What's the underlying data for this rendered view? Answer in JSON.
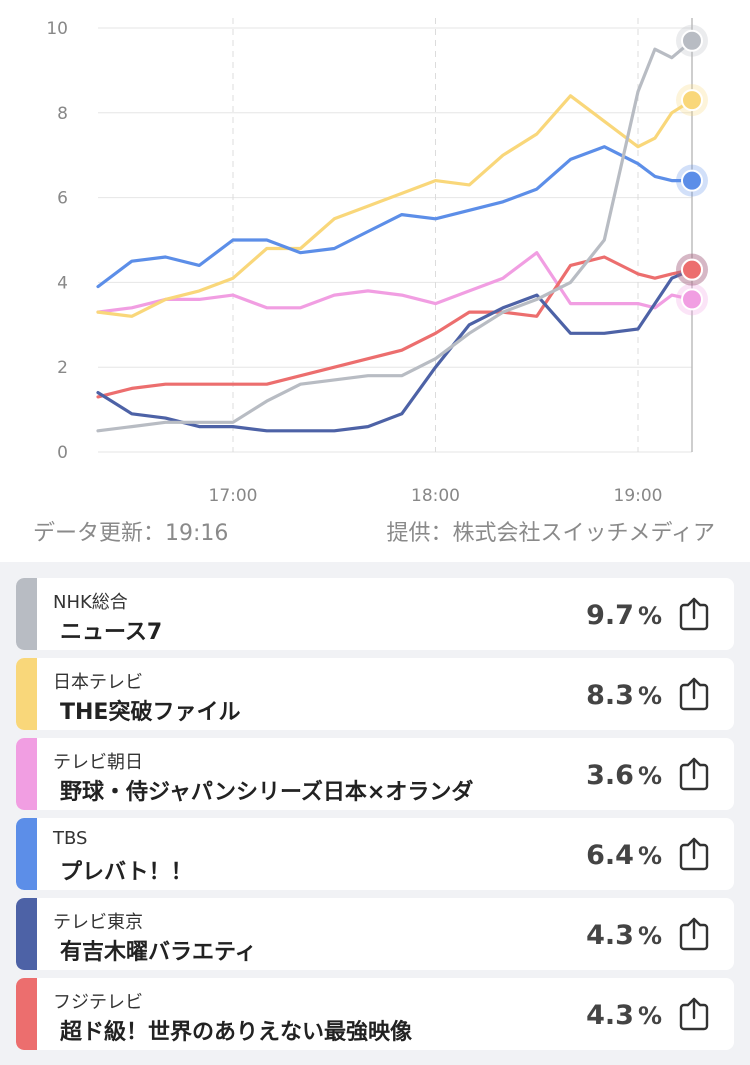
{
  "footer": {
    "update": "データ更新：19:16",
    "source": "提供：株式会社スイッチメディア"
  },
  "chart_data": {
    "type": "line",
    "xlabel": "",
    "ylabel": "",
    "x_ticks": [
      "17:00",
      "18:00",
      "19:00"
    ],
    "x_range": [
      "16:20",
      "19:16"
    ],
    "ylim": [
      0,
      10
    ],
    "y_ticks": [
      0,
      2,
      4,
      6,
      8,
      10
    ],
    "grid": true,
    "x": [
      "16:20",
      "16:30",
      "16:40",
      "16:50",
      "17:00",
      "17:10",
      "17:20",
      "17:30",
      "17:40",
      "17:50",
      "18:00",
      "18:10",
      "18:20",
      "18:30",
      "18:40",
      "18:50",
      "19:00",
      "19:05",
      "19:10",
      "19:16"
    ],
    "series": [
      {
        "name": "NHK総合",
        "color": "#b8bcc3",
        "values": [
          0.5,
          0.6,
          0.7,
          0.7,
          0.7,
          1.2,
          1.6,
          1.7,
          1.8,
          1.8,
          2.2,
          2.8,
          3.3,
          3.6,
          4.0,
          5.0,
          8.5,
          9.5,
          9.3,
          9.7
        ]
      },
      {
        "name": "日本テレビ",
        "color": "#f9d77a",
        "values": [
          3.3,
          3.2,
          3.6,
          3.8,
          4.1,
          4.8,
          4.8,
          5.5,
          5.8,
          6.1,
          6.4,
          6.3,
          7.0,
          7.5,
          8.4,
          7.8,
          7.2,
          7.4,
          8.0,
          8.3
        ]
      },
      {
        "name": "テレビ朝日",
        "color": "#f19ee2",
        "values": [
          3.3,
          3.4,
          3.6,
          3.6,
          3.7,
          3.4,
          3.4,
          3.7,
          3.8,
          3.7,
          3.5,
          3.8,
          4.1,
          4.7,
          3.5,
          3.5,
          3.5,
          3.4,
          3.7,
          3.6
        ]
      },
      {
        "name": "TBS",
        "color": "#5c8ee8",
        "values": [
          3.9,
          4.5,
          4.6,
          4.4,
          5.0,
          5.0,
          4.7,
          4.8,
          5.2,
          5.6,
          5.5,
          5.7,
          5.9,
          6.2,
          6.9,
          7.2,
          6.8,
          6.5,
          6.4,
          6.4
        ]
      },
      {
        "name": "テレビ東京",
        "color": "#4d62a6",
        "values": [
          1.4,
          0.9,
          0.8,
          0.6,
          0.6,
          0.5,
          0.5,
          0.5,
          0.6,
          0.9,
          2.0,
          3.0,
          3.4,
          3.7,
          2.8,
          2.8,
          2.9,
          3.5,
          4.1,
          4.3
        ]
      },
      {
        "name": "フジテレビ",
        "color": "#ec6e6e",
        "values": [
          1.3,
          1.5,
          1.6,
          1.6,
          1.6,
          1.6,
          1.8,
          2.0,
          2.2,
          2.4,
          2.8,
          3.3,
          3.3,
          3.2,
          4.4,
          4.6,
          4.2,
          4.1,
          4.2,
          4.3
        ]
      }
    ]
  },
  "list": [
    {
      "channel": "NHK総合",
      "program": "ニュース7",
      "rating": "9.7",
      "unit": "%",
      "color": "#b8bcc3"
    },
    {
      "channel": "日本テレビ",
      "program": "THE突破ファイル",
      "rating": "8.3",
      "unit": "%",
      "color": "#f9d77a"
    },
    {
      "channel": "テレビ朝日",
      "program": "野球・侍ジャパンシリーズ日本×オランダ",
      "rating": "3.6",
      "unit": "%",
      "color": "#f19ee2"
    },
    {
      "channel": "TBS",
      "program": "プレバト！！",
      "rating": "6.4",
      "unit": "%",
      "color": "#5c8ee8"
    },
    {
      "channel": "テレビ東京",
      "program": "有吉木曜バラエティ",
      "rating": "4.3",
      "unit": "%",
      "color": "#4d62a6"
    },
    {
      "channel": "フジテレビ",
      "program": "超ド級！世界のありえない最強映像",
      "rating": "4.3",
      "unit": "%",
      "color": "#ec6e6e"
    }
  ],
  "icons": {
    "share": "share-icon"
  }
}
